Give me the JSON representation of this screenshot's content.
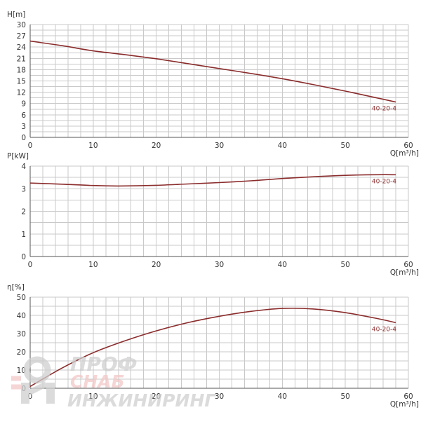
{
  "colors": {
    "curve": "#8b2c2c",
    "grid": "#c9c9c9",
    "axis": "#555555",
    "text": "#333333",
    "watermark_gray": "#cfcfcf",
    "watermark_red": "#f3c7c7"
  },
  "watermark": {
    "line1": "ПРОФ",
    "line2": "СНАБ",
    "line3": "ИНЖИНИРИНГ"
  },
  "chart_data": [
    {
      "type": "line",
      "title": "",
      "ylabel": "H[m]",
      "xlabel": "Q[m³/h]",
      "xlim": [
        0,
        60
      ],
      "ylim": [
        0,
        30
      ],
      "x_ticks": [
        "0",
        "10",
        "20",
        "30",
        "40",
        "50",
        "60"
      ],
      "y_ticks": [
        "0",
        "3",
        "6",
        "9",
        "12",
        "15",
        "18",
        "21",
        "24",
        "27",
        "30"
      ],
      "grid": true,
      "series": [
        {
          "name": "40-20-4",
          "x": [
            0,
            5,
            10,
            15,
            20,
            25,
            30,
            35,
            40,
            45,
            50,
            55,
            58
          ],
          "values": [
            25.6,
            24.4,
            23.0,
            22.0,
            20.9,
            19.6,
            18.3,
            17.0,
            15.6,
            14.0,
            12.3,
            10.5,
            9.4
          ]
        }
      ]
    },
    {
      "type": "line",
      "title": "",
      "ylabel": "P[kW]",
      "xlabel": "Q[m³/h]",
      "xlim": [
        0,
        60
      ],
      "ylim": [
        0,
        4
      ],
      "x_ticks": [
        "0",
        "10",
        "20",
        "30",
        "40",
        "50",
        "60"
      ],
      "y_ticks": [
        "0",
        "1",
        "2",
        "3",
        "4"
      ],
      "grid": true,
      "series": [
        {
          "name": "40-20-4",
          "x": [
            0,
            5,
            10,
            14,
            20,
            25,
            30,
            35,
            40,
            45,
            50,
            55,
            58
          ],
          "values": [
            3.25,
            3.2,
            3.14,
            3.12,
            3.15,
            3.21,
            3.27,
            3.35,
            3.45,
            3.53,
            3.59,
            3.62,
            3.62
          ]
        }
      ]
    },
    {
      "type": "line",
      "title": "",
      "ylabel": "η[%]",
      "xlabel": "Q[m³/h]",
      "xlim": [
        0,
        60
      ],
      "ylim": [
        0,
        50
      ],
      "x_ticks": [
        "0",
        "10",
        "20",
        "30",
        "40",
        "50",
        "60"
      ],
      "y_ticks": [
        "0",
        "10",
        "20",
        "30",
        "40",
        "50"
      ],
      "grid": true,
      "series": [
        {
          "name": "40-20-4",
          "x": [
            0,
            5,
            10,
            15,
            20,
            25,
            30,
            35,
            40,
            45,
            50,
            55,
            58
          ],
          "values": [
            1,
            11,
            19.5,
            26,
            31.5,
            36,
            39.5,
            42.2,
            43.8,
            43.5,
            41.5,
            38.3,
            36.0
          ]
        }
      ]
    }
  ]
}
